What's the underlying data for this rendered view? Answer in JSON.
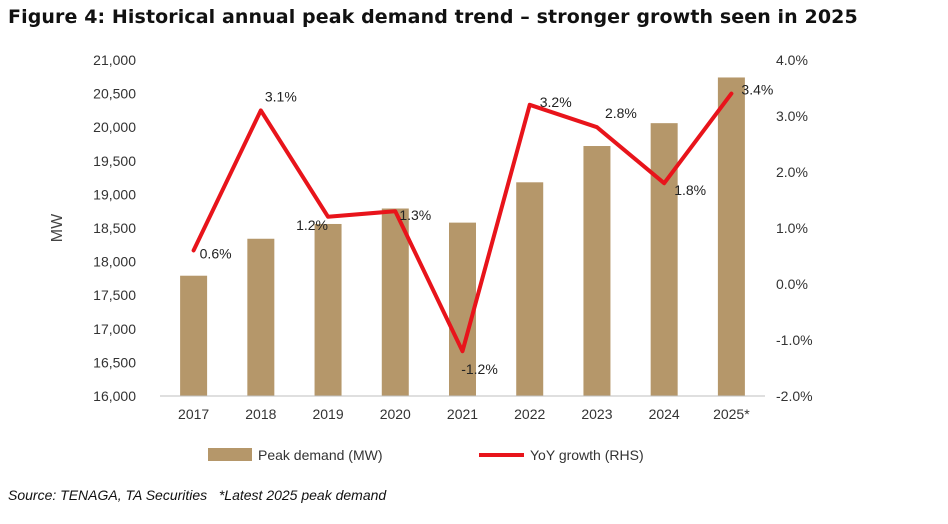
{
  "figure": {
    "title": "Figure 4: Historical annual peak demand trend – stronger growth seen in 2025",
    "source": "Source: TENAGA, TA Securities   *Latest 2025 peak demand"
  },
  "colors": {
    "bar": "#B5976A",
    "line": "#E8141B",
    "axis": "#BFBFBF"
  },
  "chart_data": {
    "type": "bar+line",
    "categories": [
      "2017",
      "2018",
      "2019",
      "2020",
      "2021",
      "2022",
      "2023",
      "2024",
      "2025*"
    ],
    "series": [
      {
        "name": "Peak demand (MW)",
        "type": "bar",
        "axis": "left",
        "values": [
          17790,
          18340,
          18560,
          18790,
          18580,
          19180,
          19720,
          20060,
          20740
        ]
      },
      {
        "name": "YoY growth (RHS)",
        "type": "line",
        "axis": "right",
        "values": [
          0.6,
          3.1,
          1.2,
          1.3,
          -1.2,
          3.2,
          2.8,
          1.8,
          3.4
        ],
        "labels": [
          "0.6%",
          "3.1%",
          "1.2%",
          "1.3%",
          "-1.2%",
          "3.2%",
          "2.8%",
          "1.8%",
          "3.4%"
        ]
      }
    ],
    "ylabel": "MW",
    "ylim": [
      16000,
      21000
    ],
    "yticks": [
      "16,000",
      "16,500",
      "17,000",
      "17,500",
      "18,000",
      "18,500",
      "19,000",
      "19,500",
      "20,000",
      "20,500",
      "21,000"
    ],
    "y2lim": [
      -2.0,
      4.0
    ],
    "y2ticks": [
      "-2.0%",
      "-1.0%",
      "0.0%",
      "1.0%",
      "2.0%",
      "3.0%",
      "4.0%"
    ],
    "grid": false,
    "legend": "bottom"
  }
}
